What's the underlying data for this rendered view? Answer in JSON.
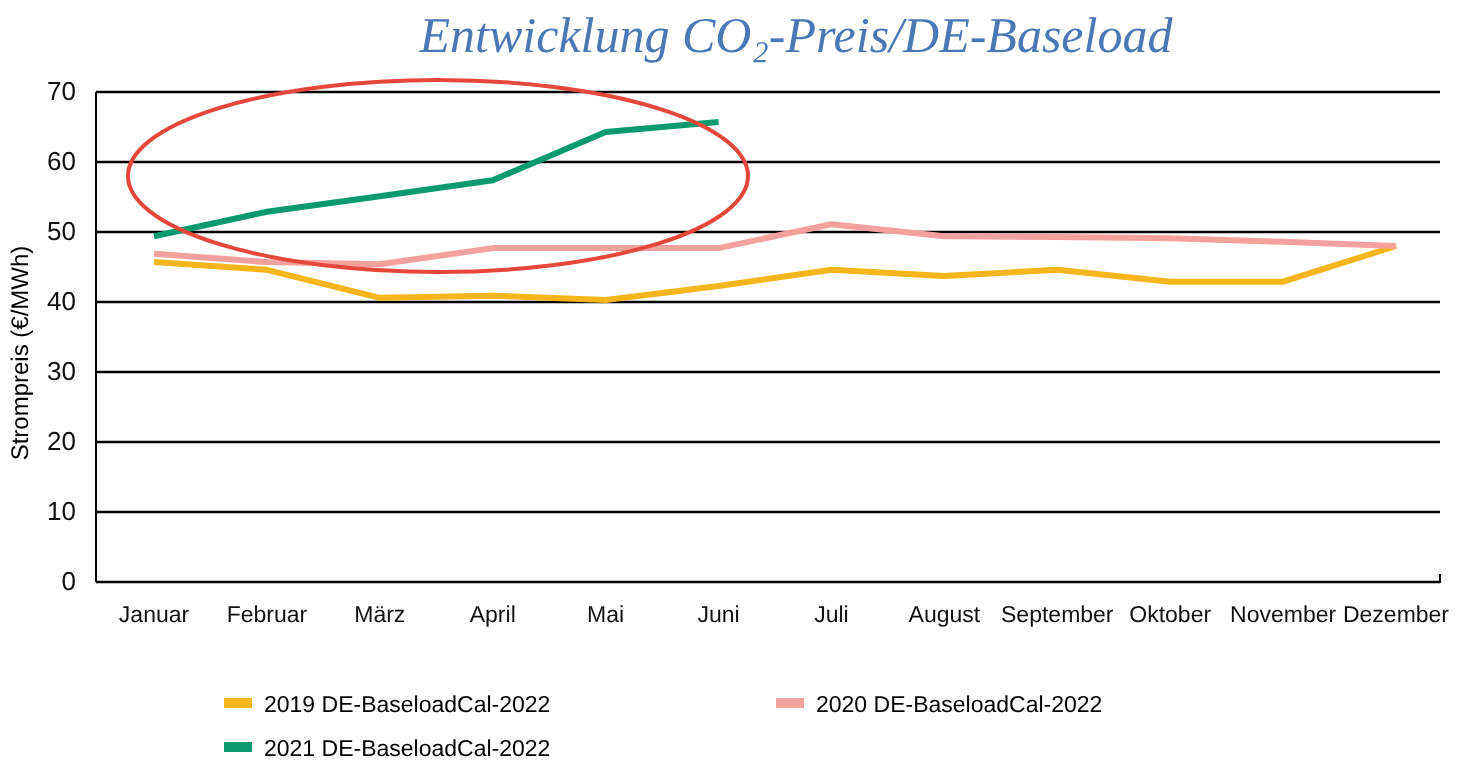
{
  "chart_data": {
    "type": "line",
    "title": "Entwicklung CO₂-Preis/DE-Baseload",
    "ylabel": "Strompreis  (€/MWh)",
    "categories": [
      "Januar",
      "Februar",
      "März",
      "April",
      "Mai",
      "Juni",
      "Juli",
      "August",
      "September",
      "Oktober",
      "November",
      "Dezember"
    ],
    "ylim": [
      0,
      70
    ],
    "yticks": [
      0,
      10,
      20,
      30,
      40,
      50,
      60,
      70
    ],
    "grid": "y",
    "legend": "bottom",
    "line_style": "solid",
    "marker": "none",
    "series": [
      {
        "name": "2019 DE-BaseloadCal-2022",
        "color": "#f7b51c",
        "values": [
          45.7,
          44.6,
          40.6,
          40.9,
          40.3,
          42.3,
          44.6,
          43.7,
          44.6,
          42.9,
          42.9,
          48.0
        ]
      },
      {
        "name": "2020 DE-BaseloadCal-2022",
        "color": "#f4a09c",
        "values": [
          46.9,
          45.7,
          45.4,
          47.7,
          47.7,
          47.7,
          51.1,
          49.4,
          49.3,
          49.1,
          48.6,
          48.0
        ]
      },
      {
        "name": "2021 DE-BaseloadCal-2022",
        "color": "#0a9a6e",
        "values": [
          49.4,
          52.9,
          55.1,
          57.4,
          64.3,
          65.7,
          null,
          null,
          null,
          null,
          null,
          null
        ]
      }
    ]
  }
}
